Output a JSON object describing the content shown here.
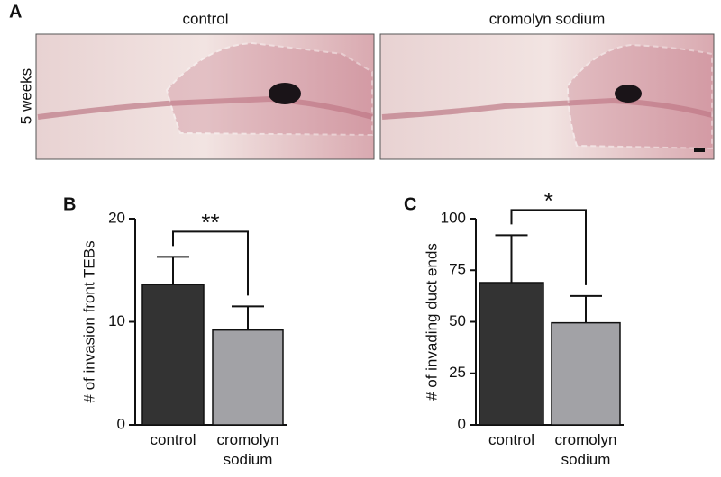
{
  "panel_a": {
    "panel_label": "A",
    "row_label": "5 weeks",
    "image_titles": [
      "control",
      "cromolyn sodium"
    ]
  },
  "chart_data": [
    {
      "type": "bar",
      "panel_label": "B",
      "ylabel": "# of invasion front TEBs",
      "categories": [
        "control",
        "cromolyn sodium"
      ],
      "values": [
        13.6,
        9.2
      ],
      "errors": [
        2.7,
        2.3
      ],
      "colors": [
        "#333333",
        "#a2a2a6"
      ],
      "ylim": [
        0,
        20
      ],
      "yticks": [
        0,
        10,
        20
      ],
      "significance": "**"
    },
    {
      "type": "bar",
      "panel_label": "C",
      "ylabel": "# of invading duct ends",
      "categories": [
        "control",
        "cromolyn sodium"
      ],
      "values": [
        69,
        49.5
      ],
      "errors": [
        23,
        13
      ],
      "colors": [
        "#333333",
        "#a2a2a6"
      ],
      "ylim": [
        0,
        100
      ],
      "yticks": [
        0,
        25,
        50,
        75,
        100
      ],
      "significance": "*"
    }
  ]
}
